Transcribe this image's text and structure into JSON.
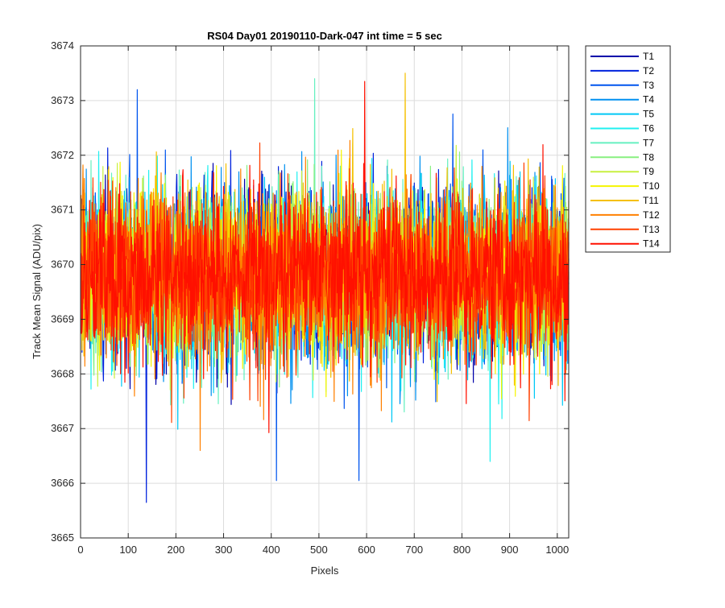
{
  "chart_data": {
    "type": "line",
    "title": "RS04 Day01 20190110-Dark-047 int time = 5 sec",
    "xlabel": "Pixels",
    "ylabel": "Track Mean Signal (ADU/pix)",
    "xlim": [
      0,
      1024
    ],
    "ylim": [
      3665,
      3674
    ],
    "xticks": [
      0,
      100,
      200,
      300,
      400,
      500,
      600,
      700,
      800,
      900,
      1000
    ],
    "xtick_labels": [
      "0",
      "100",
      "200",
      "300",
      "400",
      "500",
      "600",
      "700",
      "800",
      "900",
      "1000"
    ],
    "yticks": [
      3665,
      3666,
      3667,
      3668,
      3669,
      3670,
      3671,
      3672,
      3673,
      3674
    ],
    "ytick_labels": [
      "3665",
      "3666",
      "3667",
      "3668",
      "3669",
      "3670",
      "3671",
      "3672",
      "3673",
      "3674"
    ],
    "grid": true,
    "legend_position": "outside-top-right",
    "x_count": 1024,
    "noise_model": {
      "mean": 3669.8,
      "sd": 0.75,
      "min": 3665.6,
      "max": 3673.5
    },
    "series": [
      {
        "name": "T1",
        "color": "#0000aa"
      },
      {
        "name": "T2",
        "color": "#0022dd"
      },
      {
        "name": "T3",
        "color": "#0055ee"
      },
      {
        "name": "T4",
        "color": "#0090f0"
      },
      {
        "name": "T5",
        "color": "#00c8f5"
      },
      {
        "name": "T6",
        "color": "#20f0f0"
      },
      {
        "name": "T7",
        "color": "#66f0c0"
      },
      {
        "name": "T8",
        "color": "#88f080"
      },
      {
        "name": "T9",
        "color": "#c8f040"
      },
      {
        "name": "T10",
        "color": "#f5f500"
      },
      {
        "name": "T11",
        "color": "#f5c000"
      },
      {
        "name": "T12",
        "color": "#ff8000"
      },
      {
        "name": "T13",
        "color": "#ff4000"
      },
      {
        "name": "T14",
        "color": "#ff1000"
      }
    ],
    "highlighted_values": [
      {
        "series": "T3",
        "x": 118,
        "y": 3673.2
      },
      {
        "series": "T2",
        "x": 137,
        "y": 3673.2
      },
      {
        "series": "T7",
        "x": 490,
        "y": 3673.4
      },
      {
        "series": "T11",
        "x": 680,
        "y": 3673.5
      },
      {
        "series": "T14",
        "x": 595,
        "y": 3673.35
      },
      {
        "series": "T2",
        "x": 137,
        "y": 3665.65
      },
      {
        "series": "T3",
        "x": 410,
        "y": 3666.05
      },
      {
        "series": "T3",
        "x": 583,
        "y": 3666.05
      },
      {
        "series": "T12",
        "x": 250,
        "y": 3666.6
      },
      {
        "series": "T6",
        "x": 858,
        "y": 3666.4
      }
    ]
  }
}
